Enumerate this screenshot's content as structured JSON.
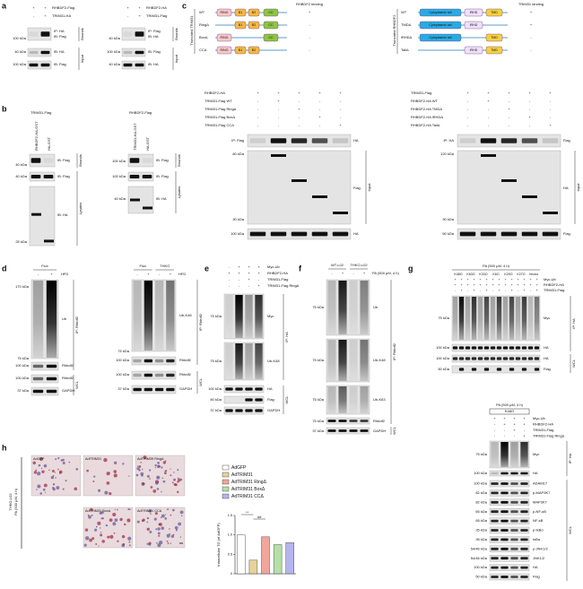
{
  "panels": {
    "a": {
      "label": "a",
      "left": {
        "rows": [
          {
            "name": "RHBDF2-Flag",
            "signs": [
              "+",
              "+"
            ]
          },
          {
            "name": "TRIM31-HA",
            "signs": [
              "-",
              "+"
            ]
          }
        ],
        "blots": [
          "IP: HA",
          "IB: Flag",
          "IB: HA",
          "IB: Flag"
        ],
        "markers": [
          "100 kDa",
          "40 kDa",
          "100 kDa"
        ],
        "sections": [
          "Bounds",
          "Input"
        ]
      },
      "right": {
        "rows": [
          {
            "name": "RHBDF2-HA",
            "signs": [
              "+",
              "+"
            ]
          },
          {
            "name": "TRIM31-Flag",
            "signs": [
              "-",
              "+"
            ]
          }
        ],
        "blots": [
          "IP: Flag",
          "IB: HA",
          "IB: Flag",
          "IB: HA"
        ],
        "markers": [
          "40 kDa",
          "100 kDa",
          "40 kDa"
        ],
        "sections": [
          "Bounds",
          "Input"
        ]
      }
    },
    "b": {
      "label": "b",
      "left": {
        "bait": "TRIM31-Flag",
        "lanes": [
          "RHBDF2-HA-GST",
          "HA-GST"
        ],
        "blots": [
          "IB: Flag",
          "IB: Flag",
          "IB: HA"
        ],
        "markers": [
          "40 kDa",
          "40 kDa",
          "25 kDa"
        ],
        "sections": [
          "Bounds",
          "Lysates"
        ]
      },
      "right": {
        "bait": "RHBDF2-Flag",
        "lanes": [
          "TRIM31-HA-GST",
          "HA-GST"
        ],
        "blots": [
          "IB: Flag",
          "IB: Flag",
          "IB: HA"
        ],
        "markers": [
          "100 kDa",
          "100 kDa",
          "40 kDa"
        ],
        "sections": [
          "Bounds",
          "Lysates"
        ]
      }
    },
    "c": {
      "label": "c",
      "left_domain": {
        "side_title": "Truncated TRIM31",
        "header": "RHBDF2 binding",
        "domains": [
          "RING",
          "B1",
          "B2",
          "CC"
        ],
        "constructs": [
          {
            "name": "WT",
            "binding": "+"
          },
          {
            "name": "RingΔ",
            "binding": "-"
          },
          {
            "name": "BoxΔ",
            "binding": "-"
          },
          {
            "name": "CCΔ",
            "binding": "-"
          }
        ]
      },
      "right_domain": {
        "side_title": "Truncated RHBDF2",
        "header": "TRIM31 binding",
        "domains": [
          "Cytoplasmic tail",
          "iRHD",
          "TMD"
        ],
        "constructs": [
          {
            "name": "WT",
            "binding": "+"
          },
          {
            "name": "TMDΔ",
            "binding": "+"
          },
          {
            "name": "iRHDΔ",
            "binding": "-"
          },
          {
            "name": "TailΔ",
            "binding": "-"
          }
        ]
      },
      "left_blot": {
        "rows": [
          {
            "name": "RHBDF2-HA",
            "signs": [
              "+",
              "+",
              "+",
              "+",
              "+"
            ]
          },
          {
            "name": "TRIM31-Flag WT",
            "signs": [
              "-",
              "+",
              "-",
              "-",
              "-"
            ]
          },
          {
            "name": "TRIM31-Flag RingΔ",
            "signs": [
              "-",
              "-",
              "+",
              "-",
              "-"
            ]
          },
          {
            "name": "TRIM31-Flag BoxΔ",
            "signs": [
              "-",
              "-",
              "-",
              "+",
              "-"
            ]
          },
          {
            "name": "TRIM31-Flag CCΔ",
            "signs": [
              "-",
              "-",
              "-",
              "-",
              "+"
            ]
          }
        ],
        "blots": [
          "IP: Flag",
          "HA",
          "Flag",
          "HA"
        ],
        "section": "Input",
        "markers": [
          "80 kDa",
          "30 kDa",
          "100 kDa"
        ]
      },
      "right_blot": {
        "rows": [
          {
            "name": "TRIM31-Flag",
            "signs": [
              "+",
              "+",
              "+",
              "+",
              "+"
            ]
          },
          {
            "name": "RHBDF2-HA WT",
            "signs": [
              "-",
              "+",
              "-",
              "-",
              "-"
            ]
          },
          {
            "name": "RHBDF2-HA TMDΔ",
            "signs": [
              "-",
              "-",
              "+",
              "-",
              "-"
            ]
          },
          {
            "name": "RHBDF2-HA iRHDΔ",
            "signs": [
              "-",
              "-",
              "-",
              "+",
              "-"
            ]
          },
          {
            "name": "RHBDF2-HA TailΔ",
            "signs": [
              "-",
              "-",
              "-",
              "-",
              "+"
            ]
          }
        ],
        "blots": [
          "IP: HA",
          "Flag",
          "HA",
          "Flag"
        ],
        "section": "Input",
        "markers": [
          "120 kDa",
          "30 kDa",
          "50 kDa"
        ]
      }
    },
    "d": {
      "label": "d",
      "left": {
        "genotype": [
          "Flox"
        ],
        "treatment": "HFD",
        "signs": [
          "-",
          "+"
        ],
        "blots": [
          "Ub",
          "Rhbdf2",
          "Rhbdf2",
          "GAPDH"
        ],
        "markers": [
          "170 kDa",
          "75 kDa",
          "100 kDa",
          "100 kDa",
          "37 kDa"
        ],
        "sections": [
          "IP: Rhbdf2",
          "WCL"
        ]
      },
      "right": {
        "genotype": [
          "Flox",
          "THKO"
        ],
        "treatment": "HFD",
        "signs": [
          "-",
          "+",
          "-",
          "+"
        ],
        "blots": [
          "Ub-K48",
          "Rhbdf2",
          "Rhbdf2",
          "GAPDH"
        ],
        "markers": [
          "75 kDa",
          "100 kDa",
          "100 kDa",
          "37 kDa"
        ],
        "sections": [
          "IP: Rhbdf2",
          "WCL"
        ]
      }
    },
    "e": {
      "label": "e",
      "rows": [
        {
          "name": "Myc-Ub",
          "signs": [
            "-",
            "+",
            "+",
            "+"
          ]
        },
        {
          "name": "RHBDF2-HA",
          "signs": [
            "+",
            "+",
            "+",
            "+"
          ]
        },
        {
          "name": "TRIM31-Flag",
          "signs": [
            "-",
            "-",
            "+",
            "-"
          ]
        },
        {
          "name": "TRIM31-Flag RingΔ",
          "signs": [
            "-",
            "-",
            "-",
            "+"
          ]
        }
      ],
      "blots": [
        "Myc",
        "Ub-K48",
        "HA",
        "Flag",
        "GAPDH"
      ],
      "markers": [
        "75 kDa",
        "75 kDa",
        "100 kDa",
        "50 kDa",
        "37 kDa"
      ],
      "sections": [
        "IP: HA",
        "WCL"
      ]
    },
    "f": {
      "label": "f",
      "genotype": [
        "WT-L02",
        "THKO-L02"
      ],
      "treatment": "PA (500 μM, 4 h)",
      "signs": [
        "-",
        "+",
        "-",
        "+"
      ],
      "blots": [
        "Ub",
        "Ub-K48",
        "Ub-K63",
        "Rhbdf2",
        "GAPDH"
      ],
      "markers": [
        "75 kDa",
        "75 kDa",
        "75 kDa",
        "75 kDa",
        "37 kDa"
      ],
      "sections": [
        "IP: Rhbdf2",
        "WCL"
      ]
    },
    "g": {
      "label": "g",
      "treatment": "PA (500 μM, 4 h)",
      "mutants": [
        "K48O",
        "K63O",
        "K33O",
        "K6O",
        "K29O",
        "K27O",
        "Vector"
      ],
      "rows": [
        {
          "name": "Myc-Ub",
          "signs": [
            "+",
            "+",
            "+",
            "+",
            "+",
            "+",
            "+",
            "+",
            "+",
            "+",
            "+",
            "+",
            "+",
            "+"
          ]
        },
        {
          "name": "RHBDF2-HA",
          "signs": [
            "+",
            "+",
            "+",
            "+",
            "+",
            "+",
            "+",
            "+",
            "+",
            "+",
            "+",
            "+",
            "+",
            "+"
          ]
        },
        {
          "name": "TRIM31-Flag",
          "signs": [
            "-",
            "+",
            "-",
            "+",
            "-",
            "+",
            "-",
            "+",
            "-",
            "+",
            "-",
            "+",
            "-",
            "+"
          ]
        }
      ],
      "blots": [
        "Myc",
        "HA",
        "HA",
        "Flag"
      ],
      "markers": [
        "75 kDa",
        "100 kDa",
        "100 kDa",
        "50 kDa"
      ],
      "sections": [
        "IP: HA",
        "WCL"
      ]
    },
    "g2": {
      "treatment": "PA (500 μM, 4 h)",
      "mutant": "K48O",
      "rows": [
        {
          "name": "Myc-Ub",
          "signs": [
            "+",
            "+",
            "+",
            "+"
          ]
        },
        {
          "name": "RHBDF2-HA",
          "signs": [
            "-",
            "+",
            "+",
            "+"
          ]
        },
        {
          "name": "TRIM31-Flag",
          "signs": [
            "-",
            "-",
            "+",
            "-"
          ]
        },
        {
          "name": "TRIM31-Flag RingΔ",
          "signs": [
            "-",
            "-",
            "-",
            "+"
          ]
        }
      ],
      "blots": [
        "Myc",
        "HA",
        "ADAM17",
        "p-MAP3K7",
        "MAP3K7",
        "p-NF-κB",
        "NF-κB",
        "p-IκBα",
        "IκBα",
        "p-JNK1/2",
        "JNK1/2",
        "HA",
        "Flag"
      ],
      "markers": [
        "75 kDa",
        "100 kDa",
        "100 kDa",
        "82 kDa",
        "82 kDa",
        "65 kDa",
        "65 kDa",
        "35 kDa",
        "35 kDa",
        "54/46 kDa",
        "54/46 kDa",
        "100 kDa",
        "50 kDa"
      ],
      "sections": [
        "IP: HA",
        "WCL"
      ]
    },
    "h": {
      "label": "h",
      "images": [
        "AdGFP",
        "AdTRIM31",
        "AdTRIM31 RingΔ",
        "AdTRIM31 BoxΔ",
        "AdTRIM31 CCΔ"
      ],
      "cell_line": "THKO-L02",
      "treatment": "PA (500 μM, 4 h)"
    }
  },
  "chart_data": {
    "type": "bar",
    "y_label": "Intracellular TG (of AdGFP)",
    "ylim": [
      0,
      1.5
    ],
    "yticks": [
      0,
      0.5,
      {
        "value": 1,
        "label": "1.0"
      },
      1.5
    ],
    "series": [
      {
        "name": "AdGFP",
        "color": "#ffffff",
        "values": [
          1.0
        ]
      },
      {
        "name": "AdTRIM31",
        "color": "#e6d29a",
        "values": [
          0.35
        ]
      },
      {
        "name": "AdTRIM31 RingΔ",
        "color": "#f2a59c",
        "values": [
          0.95
        ]
      },
      {
        "name": "AdTRIM31 BoxΔ",
        "color": "#b5dfa8",
        "values": [
          0.75
        ]
      },
      {
        "name": "AdTRIM31 CCΔ",
        "color": "#b3b6ec",
        "values": [
          0.8
        ]
      }
    ],
    "annotations": [
      "**",
      "##"
    ]
  }
}
